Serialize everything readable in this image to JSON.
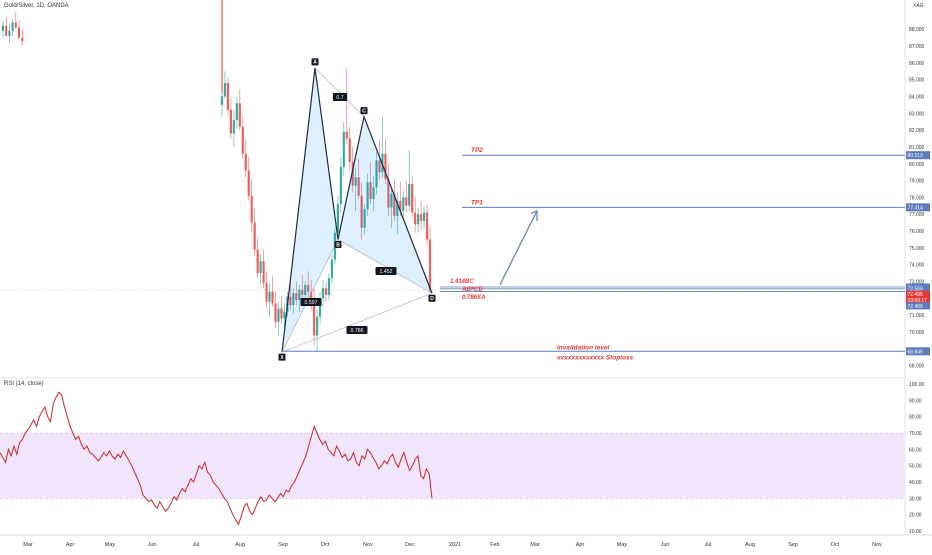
{
  "chart_data": [
    {
      "type": "candlestick",
      "symbol": "Gold/Silver, 1D, OANDA",
      "currency": "XAG",
      "ylim": [
        67.5,
        89.5
      ],
      "y_ticks": [
        "68.000",
        "70.000",
        "71.000",
        "72.000",
        "73.000",
        "74.000",
        "75.000",
        "76.000",
        "77.000",
        "78.000",
        "79.000",
        "80.000",
        "81.000",
        "82.000",
        "83.000",
        "84.000",
        "85.000",
        "86.000",
        "87.000",
        "88.000"
      ],
      "x_ticks": [
        "Mar",
        "Apr",
        "May",
        "Jun",
        "Jul",
        "Aug",
        "Sep",
        "Oct",
        "Nov",
        "Dec",
        "2021",
        "Feb",
        "Mar",
        "Apr",
        "May",
        "Jun",
        "Jul",
        "Aug",
        "Sep",
        "Oct",
        "Nov"
      ],
      "pattern_points": [
        {
          "label": "X",
          "price": 68.8
        },
        {
          "label": "A",
          "price": 85.7
        },
        {
          "label": "B",
          "price": 75.5
        },
        {
          "label": "C",
          "price": 82.8
        },
        {
          "label": "D",
          "price": 72.3
        }
      ],
      "ratios": [
        "0.7",
        "1.452",
        "0.786",
        "0.597"
      ],
      "levels": [
        {
          "name": "TP2",
          "price": 80.51,
          "price_label": "80.513"
        },
        {
          "name": "TP1",
          "price": 77.41,
          "price_label": "77.414"
        },
        {
          "name": "invalidation level",
          "subtitle": "xxxxxxxxxxxxx Stoploss",
          "price": 68.85,
          "price_label": "68.849"
        }
      ],
      "d_zone_labels": [
        "1.414BC",
        "AB=CD",
        "0.786XA"
      ],
      "price_badges": [
        {
          "label": "72.672",
          "price": 72.672,
          "color": "#5b7dbf"
        },
        {
          "label": "72.569",
          "price": 72.569,
          "color": "#5b7dbf"
        },
        {
          "label": "72.495",
          "price": 72.25,
          "color": "#e53935"
        },
        {
          "label": "03:09:17",
          "price": 71.9,
          "color": "#e53935"
        },
        {
          "label": "72.409",
          "price": 71.55,
          "color": "#5b7dbf"
        }
      ],
      "candles": [
        [
          87.9,
          88.5,
          87.5,
          88.2
        ],
        [
          88.2,
          88.7,
          87.8,
          87.6
        ],
        [
          87.6,
          88.3,
          87.2,
          87.9
        ],
        [
          87.9,
          88.6,
          87.6,
          88.4
        ],
        [
          88.4,
          89.0,
          88.0,
          88.1
        ],
        [
          88.1,
          88.5,
          87.4,
          87.5
        ],
        [
          87.5,
          88.0,
          87.0,
          87.3
        ]
      ],
      "candles_main": [
        [
          83.5,
          84.2,
          82.8,
          84.0
        ],
        [
          84.0,
          85.5,
          83.9,
          84.8
        ],
        [
          84.8,
          85.1,
          83.0,
          83.2
        ],
        [
          83.2,
          83.9,
          81.5,
          81.8
        ],
        [
          81.8,
          83.2,
          81.0,
          82.6
        ],
        [
          82.6,
          84.0,
          82.1,
          83.6
        ],
        [
          83.6,
          84.4,
          82.0,
          82.2
        ],
        [
          82.2,
          82.8,
          80.3,
          80.6
        ],
        [
          80.6,
          81.4,
          79.2,
          79.6
        ],
        [
          79.6,
          80.4,
          77.8,
          78.1
        ],
        [
          78.1,
          79.0,
          76.0,
          76.5
        ],
        [
          76.5,
          77.3,
          74.5,
          74.9
        ],
        [
          74.9,
          75.6,
          73.2,
          73.5
        ],
        [
          73.5,
          74.6,
          72.8,
          74.2
        ],
        [
          74.2,
          74.9,
          72.6,
          72.9
        ],
        [
          72.9,
          73.6,
          71.4,
          71.8
        ],
        [
          71.8,
          72.9,
          70.9,
          72.4
        ],
        [
          72.4,
          73.3,
          71.5,
          71.7
        ],
        [
          71.7,
          72.4,
          70.2,
          70.6
        ],
        [
          70.6,
          71.8,
          69.8,
          71.4
        ],
        [
          71.4,
          72.1,
          70.5,
          70.8
        ],
        [
          70.8,
          71.7,
          69.9,
          71.2
        ],
        [
          71.2,
          72.4,
          70.9,
          72.1
        ],
        [
          72.1,
          72.9,
          71.3,
          71.6
        ],
        [
          71.6,
          72.6,
          71.1,
          72.3
        ],
        [
          72.3,
          73.0,
          71.6,
          71.9
        ],
        [
          71.9,
          72.8,
          71.2,
          72.5
        ],
        [
          72.5,
          73.4,
          71.9,
          72.2
        ],
        [
          72.2,
          73.0,
          71.5,
          72.8
        ],
        [
          72.8,
          73.6,
          72.0,
          72.4
        ],
        [
          72.4,
          73.1,
          71.3,
          71.7
        ],
        [
          71.7,
          72.6,
          69.2,
          69.8
        ],
        [
          69.8,
          71.3,
          68.8,
          70.9
        ],
        [
          70.9,
          72.4,
          70.5,
          72.0
        ],
        [
          72.0,
          73.1,
          71.5,
          72.6
        ],
        [
          72.6,
          73.0,
          71.8,
          72.2
        ],
        [
          72.2,
          73.5,
          71.9,
          73.2
        ],
        [
          73.2,
          74.6,
          72.9,
          74.3
        ],
        [
          74.3,
          76.2,
          74.0,
          75.9
        ],
        [
          75.9,
          78.1,
          75.4,
          77.6
        ],
        [
          77.6,
          80.4,
          77.1,
          79.8
        ],
        [
          79.8,
          82.5,
          79.3,
          81.9
        ],
        [
          81.9,
          85.7,
          81.2,
          81.5
        ],
        [
          81.5,
          82.2,
          79.6,
          80.1
        ],
        [
          80.1,
          81.0,
          78.3,
          78.7
        ],
        [
          78.7,
          79.8,
          77.2,
          79.2
        ],
        [
          79.2,
          80.3,
          77.9,
          78.1
        ],
        [
          78.1,
          78.9,
          75.5,
          76.2
        ],
        [
          76.2,
          77.6,
          75.8,
          77.3
        ],
        [
          77.3,
          79.4,
          76.9,
          78.9
        ],
        [
          78.9,
          80.1,
          77.6,
          77.9
        ],
        [
          77.9,
          79.3,
          77.2,
          78.6
        ],
        [
          78.6,
          80.7,
          78.2,
          80.2
        ],
        [
          80.2,
          81.4,
          79.1,
          79.5
        ],
        [
          79.5,
          82.8,
          79.2,
          80.6
        ],
        [
          80.6,
          81.5,
          78.8,
          79.1
        ],
        [
          79.1,
          80.0,
          76.9,
          77.4
        ],
        [
          77.4,
          78.6,
          76.2,
          78.2
        ],
        [
          78.2,
          79.1,
          76.6,
          76.9
        ],
        [
          76.9,
          78.3,
          75.8,
          77.8
        ],
        [
          77.8,
          78.9,
          76.9,
          77.2
        ],
        [
          77.2,
          78.4,
          76.7,
          78.0
        ],
        [
          78.0,
          79.0,
          77.1,
          77.5
        ],
        [
          77.5,
          80.8,
          77.2,
          78.8
        ],
        [
          78.8,
          79.3,
          76.8,
          77.1
        ],
        [
          77.1,
          78.0,
          75.9,
          76.4
        ],
        [
          76.4,
          77.4,
          75.9,
          77.0
        ],
        [
          77.0,
          77.8,
          76.1,
          76.6
        ],
        [
          76.6,
          77.5,
          76.2,
          77.1
        ],
        [
          77.1,
          77.6,
          75.2,
          75.5
        ],
        [
          75.5,
          76.3,
          72.3,
          72.5
        ]
      ],
      "rsi": {
        "label": "RSI (14, close)",
        "ylim": [
          10,
          100
        ],
        "y_ticks": [
          "10.00",
          "20.00",
          "30.00",
          "40.00",
          "50.00",
          "60.00",
          "70.00",
          "80.00",
          "90.00",
          "100.00"
        ],
        "band": [
          30,
          70
        ],
        "color": "#c62828",
        "values": [
          58,
          55,
          52,
          60,
          56,
          62,
          57,
          64,
          66,
          70,
          72,
          75,
          78,
          74,
          80,
          83,
          86,
          80,
          77,
          88,
          92,
          95,
          93,
          86,
          80,
          74,
          70,
          66,
          68,
          63,
          60,
          62,
          58,
          57,
          55,
          53,
          55,
          58,
          56,
          59,
          56,
          54,
          57,
          55,
          59,
          56,
          53,
          50,
          46,
          42,
          38,
          32,
          30,
          28,
          29,
          26,
          24,
          28,
          25,
          22,
          24,
          27,
          31,
          29,
          33,
          36,
          34,
          38,
          42,
          40,
          45,
          50,
          48,
          52,
          46,
          44,
          40,
          38,
          36,
          33,
          30,
          28,
          24,
          20,
          17,
          14,
          19,
          25,
          27,
          22,
          20,
          24,
          28,
          31,
          28,
          29,
          32,
          30,
          28,
          30,
          33,
          31,
          35,
          34,
          38,
          40,
          44,
          48,
          52,
          56,
          62,
          68,
          74,
          70,
          66,
          63,
          65,
          60,
          58,
          56,
          62,
          59,
          55,
          57,
          53,
          54,
          58,
          52,
          50,
          56,
          54,
          60,
          58,
          55,
          52,
          48,
          50,
          53,
          51,
          55,
          57,
          52,
          49,
          54,
          58,
          52,
          47,
          50,
          54,
          56,
          44,
          42,
          48,
          45,
          30
        ]
      },
      "time_labels": [
        "Mar",
        "Apr",
        "May",
        "Jun",
        "Jul",
        "Aug",
        "Sep",
        "Oct",
        "Nov",
        "Dec",
        "2021",
        "Feb",
        "Mar",
        "Apr",
        "May",
        "Jun",
        "Jul",
        "Aug",
        "Sep",
        "Oct",
        "Nov"
      ]
    }
  ]
}
